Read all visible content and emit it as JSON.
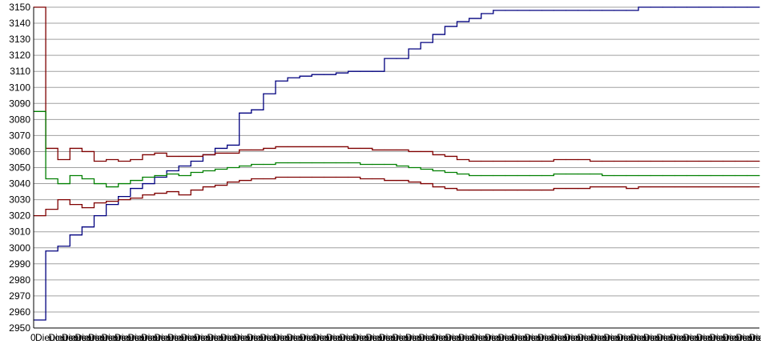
{
  "chart_data": {
    "type": "line",
    "title": "",
    "xlabel": "",
    "ylabel": "",
    "ylim": [
      2950,
      3150
    ],
    "yticks": [
      2950,
      2960,
      2970,
      2980,
      2990,
      3000,
      3010,
      3020,
      3030,
      3040,
      3050,
      3060,
      3070,
      3080,
      3090,
      3100,
      3110,
      3120,
      3130,
      3140,
      3150
    ],
    "grid": true,
    "legend": "none",
    "x_label_text": "Dieucurson",
    "x_first_label": "0",
    "x": [
      0,
      1,
      2,
      3,
      4,
      5,
      6,
      7,
      8,
      9,
      10,
      11,
      12,
      13,
      14,
      15,
      16,
      17,
      18,
      19,
      20,
      21,
      22,
      23,
      24,
      25,
      26,
      27,
      28,
      29,
      30,
      31,
      32,
      33,
      34,
      35,
      36,
      37,
      38,
      39,
      40,
      41,
      42,
      43,
      44,
      45,
      46,
      47,
      48,
      49,
      50,
      51,
      52,
      53,
      54,
      55,
      56,
      57,
      58,
      59,
      60
    ],
    "series": [
      {
        "color": "#00007f",
        "values": [
          2955,
          2998,
          3001,
          3008,
          3013,
          3020,
          3027,
          3032,
          3037,
          3040,
          3044,
          3048,
          3051,
          3054,
          3058,
          3062,
          3064,
          3084,
          3086,
          3096,
          3104,
          3106,
          3107,
          3108,
          3108,
          3109,
          3110,
          3110,
          3110,
          3118,
          3118,
          3124,
          3128,
          3133,
          3138,
          3141,
          3143,
          3146,
          3148,
          3148,
          3148,
          3148,
          3148,
          3148,
          3148,
          3148,
          3148,
          3148,
          3148,
          3148,
          3150,
          3150,
          3150,
          3150,
          3150,
          3150,
          3150,
          3150,
          3150,
          3150,
          3150
        ]
      },
      {
        "color": "#7f0000",
        "values": [
          3150,
          3062,
          3055,
          3062,
          3060,
          3054,
          3055,
          3054,
          3055,
          3058,
          3059,
          3057,
          3057,
          3057,
          3058,
          3059,
          3059,
          3061,
          3061,
          3062,
          3063,
          3063,
          3063,
          3063,
          3063,
          3063,
          3062,
          3062,
          3061,
          3061,
          3061,
          3060,
          3060,
          3058,
          3057,
          3055,
          3054,
          3054,
          3054,
          3054,
          3054,
          3054,
          3054,
          3055,
          3055,
          3055,
          3054,
          3054,
          3054,
          3054,
          3054,
          3054,
          3054,
          3054,
          3054,
          3054,
          3054,
          3054,
          3054,
          3054,
          3054
        ]
      },
      {
        "color": "#007f00",
        "values": [
          3085,
          3043,
          3040,
          3045,
          3043,
          3040,
          3038,
          3040,
          3042,
          3044,
          3045,
          3046,
          3045,
          3047,
          3048,
          3049,
          3050,
          3051,
          3052,
          3052,
          3053,
          3053,
          3053,
          3053,
          3053,
          3053,
          3053,
          3052,
          3052,
          3052,
          3051,
          3050,
          3049,
          3048,
          3047,
          3046,
          3045,
          3045,
          3045,
          3045,
          3045,
          3045,
          3045,
          3046,
          3046,
          3046,
          3046,
          3045,
          3045,
          3045,
          3045,
          3045,
          3045,
          3045,
          3045,
          3045,
          3045,
          3045,
          3045,
          3045,
          3045
        ]
      },
      {
        "color": "#7f0000",
        "values": [
          3020,
          3024,
          3030,
          3027,
          3025,
          3028,
          3029,
          3030,
          3031,
          3033,
          3034,
          3035,
          3033,
          3036,
          3038,
          3039,
          3041,
          3042,
          3043,
          3043,
          3044,
          3044,
          3044,
          3044,
          3044,
          3044,
          3044,
          3043,
          3043,
          3042,
          3042,
          3041,
          3040,
          3038,
          3037,
          3036,
          3036,
          3036,
          3036,
          3036,
          3036,
          3036,
          3036,
          3037,
          3037,
          3037,
          3038,
          3038,
          3038,
          3037,
          3038,
          3038,
          3038,
          3038,
          3038,
          3038,
          3038,
          3038,
          3038,
          3038,
          3038
        ]
      }
    ]
  }
}
